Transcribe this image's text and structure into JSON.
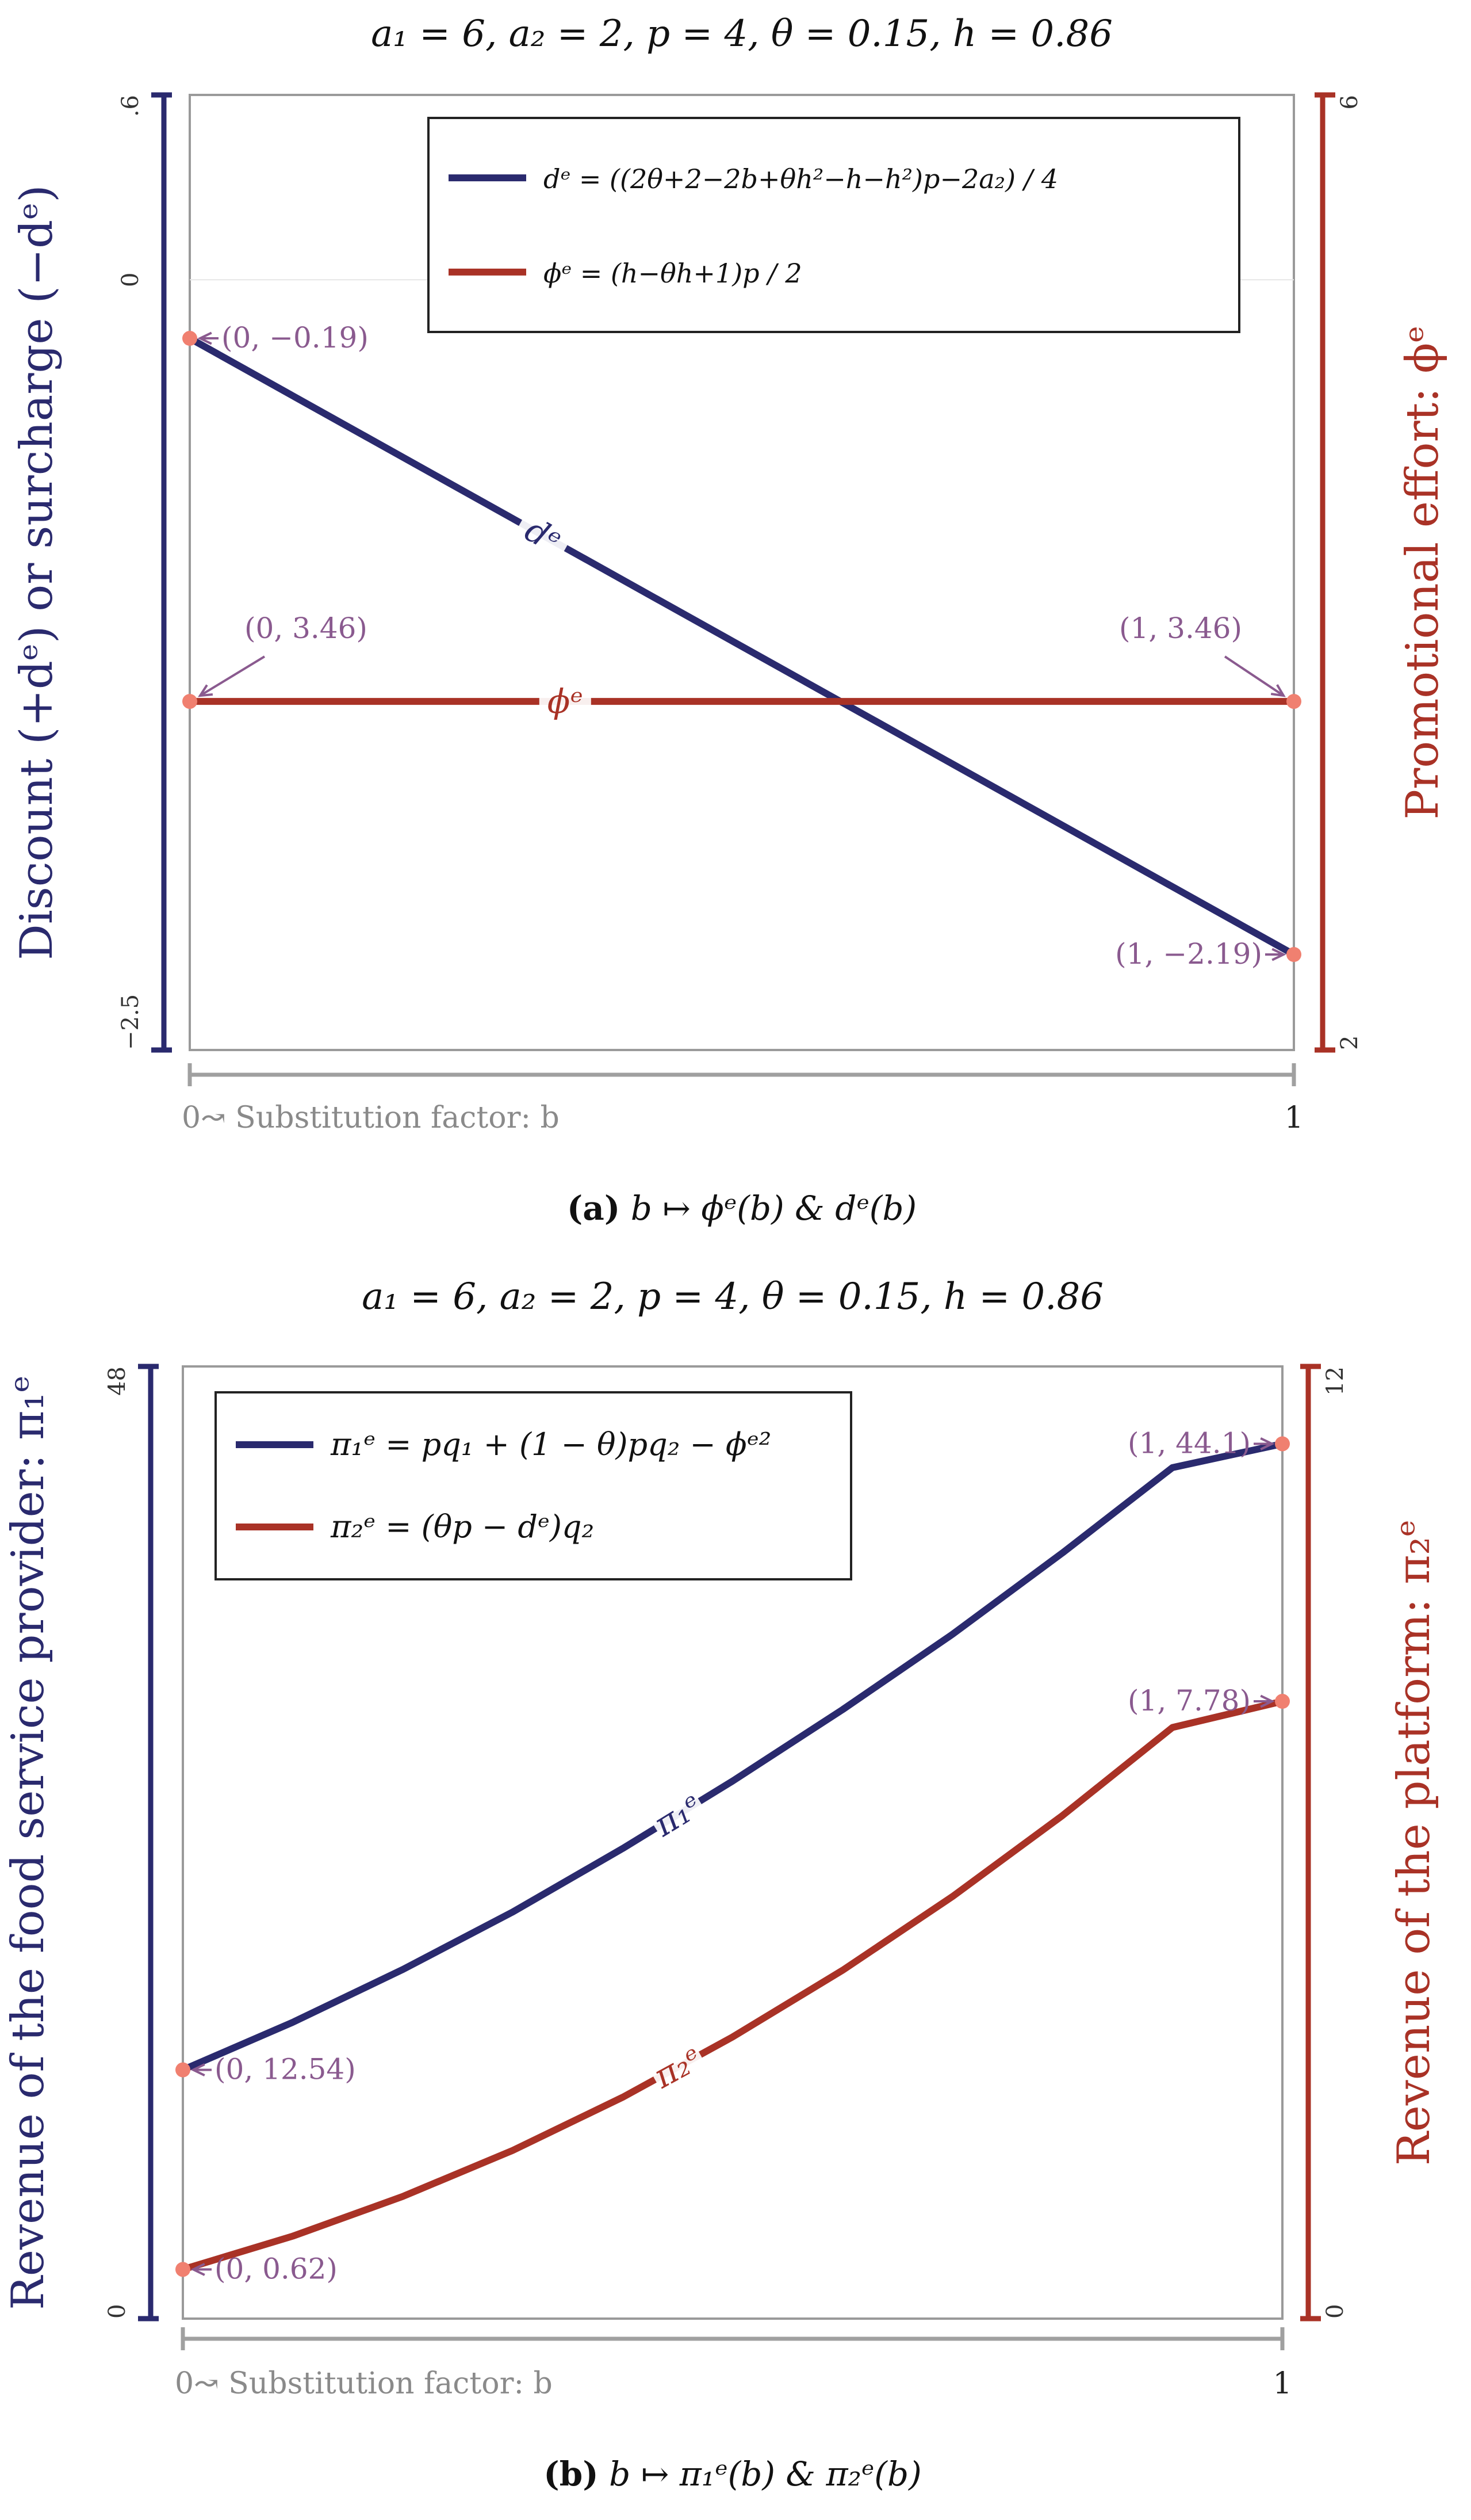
{
  "colors": {
    "navy": "#2a2a6e",
    "red": "#a93226",
    "frame": "#9a9a9a",
    "annot": "#8a5a8f",
    "dot": "#f08070",
    "axis_gray": "#a0a0a0"
  },
  "chart_data": [
    {
      "type": "line",
      "title": "a₁ = 6,  a₂ = 2,  p = 4,  θ = 0.15,  h = 0.86",
      "caption_letter": "(a)",
      "caption_text": "b ↦ ϕᵉ(b) & dᵉ(b)",
      "xlabel": "0↝ Substitution factor: b",
      "x_ticks": [
        "0",
        "1"
      ],
      "xlim": [
        0,
        1
      ],
      "ylabel_left": "Discount (+dᵉ) or surcharge (−dᵉ)",
      "ylim_left": [
        -2.5,
        0.6
      ],
      "left_ticks": [
        ".6",
        "0",
        "−2.5"
      ],
      "ylabel_right": "Promotional effort: ϕᵉ",
      "ylim_right": [
        2,
        6
      ],
      "right_ticks": [
        "6",
        "2"
      ],
      "legend_position": "top-right",
      "series": [
        {
          "name": "dᵉ",
          "axis": "left",
          "color": "#2a2a6e",
          "x": [
            0,
            1
          ],
          "y": [
            -0.19,
            -2.19
          ],
          "legend": "dᵉ = ((2θ+2−2b+θh²−h−h²)p−2a₂) / 4",
          "inline_label": "dᵉ"
        },
        {
          "name": "ϕᵉ",
          "axis": "right",
          "color": "#a93226",
          "x": [
            0,
            1
          ],
          "y": [
            3.46,
            3.46
          ],
          "legend": "ϕᵉ = (h−θh+1)p / 2",
          "inline_label": "ϕᵉ"
        }
      ],
      "annotations": [
        {
          "text": "(0, −0.19)",
          "x": 0,
          "y": -0.19,
          "axis": "left"
        },
        {
          "text": "(1, −2.19)",
          "x": 1,
          "y": -2.19,
          "axis": "left"
        },
        {
          "text": "(0, 3.46)",
          "x": 0,
          "y": 3.46,
          "axis": "right"
        },
        {
          "text": "(1, 3.46)",
          "x": 1,
          "y": 3.46,
          "axis": "right"
        }
      ]
    },
    {
      "type": "line",
      "title": "a₁ = 6,  a₂ = 2,  p = 4,  θ = 0.15,  h = 0.86",
      "caption_letter": "(b)",
      "caption_text": "b ↦ π₁ᵉ(b) & π₂ᵉ(b)",
      "xlabel": "0↝ Substitution factor: b",
      "x_ticks": [
        "0",
        "1"
      ],
      "xlim": [
        0,
        1
      ],
      "ylabel_left": "Revenue of the food service provider: π₁ᵉ",
      "ylim_left": [
        0,
        48
      ],
      "left_ticks": [
        "48",
        "0"
      ],
      "ylabel_right": "Revenue of the platform: π₂ᵉ",
      "ylim_right": [
        0,
        12
      ],
      "right_ticks": [
        "12",
        "0"
      ],
      "legend_position": "top-left",
      "series": [
        {
          "name": "π₁ᵉ",
          "axis": "left",
          "color": "#2a2a6e",
          "x": [
            0,
            0.1,
            0.2,
            0.3,
            0.4,
            0.5,
            0.6,
            0.7,
            0.8,
            0.9,
            1.0
          ],
          "y": [
            12.54,
            14.94,
            17.6,
            20.5,
            23.7,
            27.1,
            30.7,
            34.5,
            38.6,
            42.9,
            44.1
          ],
          "legend": "π₁ᵉ = pq₁ + (1 − θ)pq₂ − ϕᵉ²",
          "inline_label": "π₁ᵉ"
        },
        {
          "name": "π₂ᵉ",
          "axis": "right",
          "color": "#a93226",
          "x": [
            0,
            0.1,
            0.2,
            0.3,
            0.4,
            0.5,
            0.6,
            0.7,
            0.8,
            0.9,
            1.0
          ],
          "y": [
            0.62,
            1.04,
            1.54,
            2.12,
            2.79,
            3.55,
            4.39,
            5.32,
            6.34,
            7.45,
            7.78
          ],
          "legend": "π₂ᵉ = (θp − dᵉ)q₂",
          "inline_label": "π₂ᵉ"
        }
      ],
      "annotations": [
        {
          "text": "(0, 12.54)",
          "x": 0,
          "y": 12.54,
          "axis": "left"
        },
        {
          "text": "(1, 44.1)",
          "x": 1,
          "y": 44.1,
          "axis": "left"
        },
        {
          "text": "(0, 0.62)",
          "x": 0,
          "y": 0.62,
          "axis": "right"
        },
        {
          "text": "(1, 7.78)",
          "x": 1,
          "y": 7.78,
          "axis": "right"
        }
      ]
    }
  ]
}
